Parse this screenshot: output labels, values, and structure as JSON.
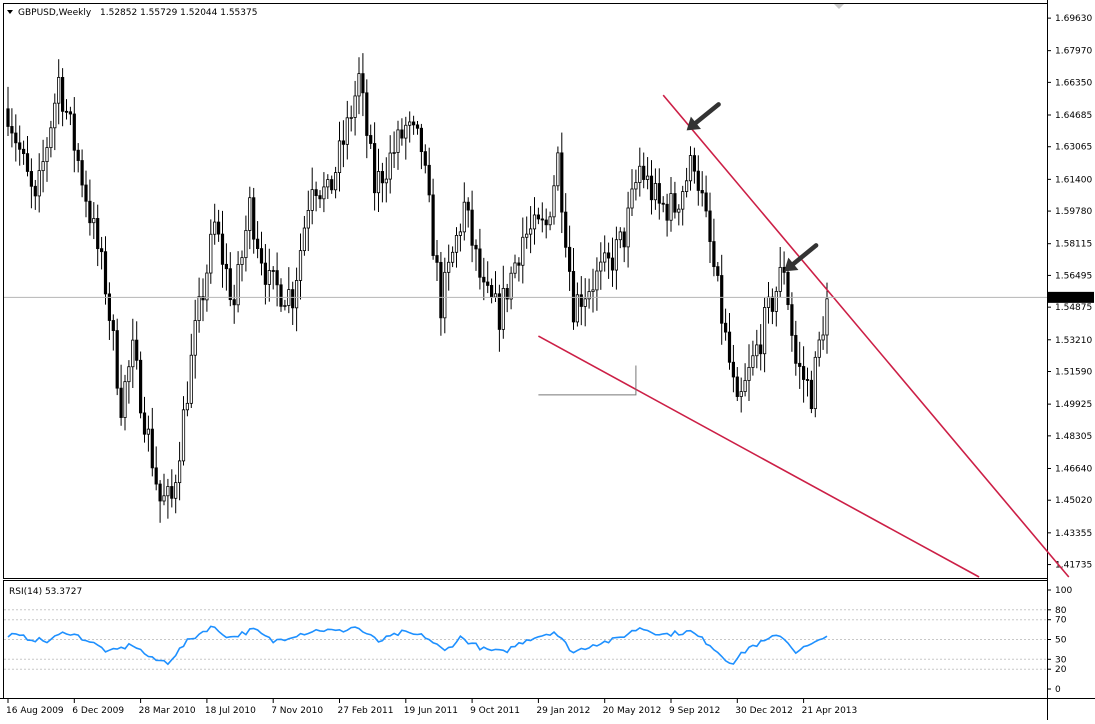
{
  "header": {
    "title": "GBPUSD,Weekly",
    "ohlc": "1.52852 1.55729 1.52044 1.55375"
  },
  "rsi_header": "RSI(14) 53.3727",
  "colors": {
    "background": "#ffffff",
    "candle": "#000000",
    "trendline": "#cc1f46",
    "rsi_line": "#1e90ff",
    "arrow": "#333333",
    "price_marker_bg": "#000000",
    "price_marker_text": "#ffffff"
  },
  "chart_data": [
    {
      "type": "candlestick",
      "title": "GBPUSD,Weekly",
      "ylim": [
        1.411,
        1.703
      ],
      "y_ticks": [
        "1.69630",
        "1.67970",
        "1.66350",
        "1.64685",
        "1.63065",
        "1.61400",
        "1.59780",
        "1.58115",
        "1.56495",
        "1.54875",
        "1.53210",
        "1.51590",
        "1.49925",
        "1.48305",
        "1.46640",
        "1.45020",
        "1.43355",
        "1.41735"
      ],
      "current_price": "1.55375",
      "x_tick_labels": [
        "16 Aug 2009",
        "6 Dec 2009",
        "28 Mar 2010",
        "18 Jul 2010",
        "7 Nov 2010",
        "27 Feb 2011",
        "19 Jun 2011",
        "9 Oct 2011",
        "29 Jan 2012",
        "20 May 2012",
        "9 Sep 2012",
        "30 Dec 2012",
        "21 Apr 2013"
      ],
      "anchors": [
        {
          "date": "2009-08-16",
          "close": 1.65
        },
        {
          "date": "2009-10-04",
          "close": 1.6
        },
        {
          "date": "2009-11-15",
          "close": 1.665
        },
        {
          "date": "2009-12-27",
          "close": 1.615
        },
        {
          "date": "2010-02-07",
          "close": 1.56
        },
        {
          "date": "2010-03-07",
          "close": 1.5
        },
        {
          "date": "2010-03-28",
          "close": 1.525
        },
        {
          "date": "2010-05-16",
          "close": 1.45
        },
        {
          "date": "2010-06-06",
          "close": 1.45
        },
        {
          "date": "2010-07-18",
          "close": 1.535
        },
        {
          "date": "2010-08-22",
          "close": 1.59
        },
        {
          "date": "2010-09-26",
          "close": 1.55
        },
        {
          "date": "2010-10-24",
          "close": 1.6
        },
        {
          "date": "2010-11-28",
          "close": 1.56
        },
        {
          "date": "2011-01-09",
          "close": 1.555
        },
        {
          "date": "2011-02-13",
          "close": 1.615
        },
        {
          "date": "2011-03-13",
          "close": 1.605
        },
        {
          "date": "2011-04-17",
          "close": 1.64
        },
        {
          "date": "2011-05-08",
          "close": 1.665
        },
        {
          "date": "2011-06-05",
          "close": 1.61
        },
        {
          "date": "2011-07-31",
          "close": 1.64
        },
        {
          "date": "2011-08-28",
          "close": 1.63
        },
        {
          "date": "2011-10-02",
          "close": 1.55
        },
        {
          "date": "2011-11-13",
          "close": 1.6
        },
        {
          "date": "2011-12-18",
          "close": 1.555
        },
        {
          "date": "2012-01-15",
          "close": 1.545
        },
        {
          "date": "2012-02-26",
          "close": 1.585
        },
        {
          "date": "2012-04-08",
          "close": 1.59
        },
        {
          "date": "2012-04-29",
          "close": 1.625
        },
        {
          "date": "2012-05-27",
          "close": 1.55
        },
        {
          "date": "2012-06-24",
          "close": 1.56
        },
        {
          "date": "2012-07-29",
          "close": 1.57
        },
        {
          "date": "2012-08-26",
          "close": 1.585
        },
        {
          "date": "2012-09-23",
          "close": 1.62
        },
        {
          "date": "2012-10-28",
          "close": 1.6
        },
        {
          "date": "2012-11-25",
          "close": 1.6
        },
        {
          "date": "2012-12-30",
          "close": 1.625
        },
        {
          "date": "2013-01-27",
          "close": 1.58
        },
        {
          "date": "2013-03-03",
          "close": 1.52
        },
        {
          "date": "2013-03-17",
          "close": 1.495
        },
        {
          "date": "2013-05-05",
          "close": 1.54
        },
        {
          "date": "2013-06-09",
          "close": 1.57
        },
        {
          "date": "2013-06-30",
          "close": 1.52
        },
        {
          "date": "2013-07-28",
          "close": 1.505
        },
        {
          "date": "2013-08-25",
          "close": 1.553
        }
      ],
      "trendlines": [
        {
          "name": "upper",
          "from": {
            "date": "2012-11-04",
            "price": 1.657
          },
          "to": {
            "date": "2014-11-02",
            "price": 1.411
          }
        },
        {
          "name": "lower",
          "from": {
            "date": "2012-03-25",
            "price": 1.534
          },
          "to": {
            "date": "2014-05-25",
            "price": 1.411
          }
        }
      ],
      "arrows": [
        {
          "date": "2012-12-16",
          "price": 1.639
        },
        {
          "date": "2013-06-09",
          "price": 1.567
        }
      ],
      "bracket": {
        "from_date": "2012-03-25",
        "to_date": "2012-09-16",
        "price_top": 1.519,
        "price_bottom": 1.504
      }
    },
    {
      "type": "line",
      "title": "RSI(14) 53.3727",
      "ylim": [
        0,
        100
      ],
      "y_ticks": [
        "100",
        "80",
        "70",
        "50",
        "30",
        "20",
        "0"
      ],
      "levels": [
        20,
        30,
        50,
        70,
        80
      ],
      "last_value": 53.3727,
      "anchors": [
        {
          "date": "2009-08-16",
          "value": 55
        },
        {
          "date": "2009-10-25",
          "value": 48
        },
        {
          "date": "2009-11-29",
          "value": 58
        },
        {
          "date": "2010-01-03",
          "value": 50
        },
        {
          "date": "2010-02-14",
          "value": 37
        },
        {
          "date": "2010-03-28",
          "value": 45
        },
        {
          "date": "2010-05-02",
          "value": 30
        },
        {
          "date": "2010-05-30",
          "value": 27
        },
        {
          "date": "2010-07-04",
          "value": 48
        },
        {
          "date": "2010-08-15",
          "value": 63
        },
        {
          "date": "2010-09-19",
          "value": 52
        },
        {
          "date": "2010-10-31",
          "value": 60
        },
        {
          "date": "2010-12-05",
          "value": 48
        },
        {
          "date": "2011-01-16",
          "value": 55
        },
        {
          "date": "2011-02-27",
          "value": 60
        },
        {
          "date": "2011-04-03",
          "value": 58
        },
        {
          "date": "2011-05-01",
          "value": 63
        },
        {
          "date": "2011-06-12",
          "value": 48
        },
        {
          "date": "2011-07-24",
          "value": 57
        },
        {
          "date": "2011-09-04",
          "value": 53
        },
        {
          "date": "2011-10-09",
          "value": 38
        },
        {
          "date": "2011-11-06",
          "value": 52
        },
        {
          "date": "2011-12-18",
          "value": 40
        },
        {
          "date": "2012-01-22",
          "value": 37
        },
        {
          "date": "2012-03-04",
          "value": 50
        },
        {
          "date": "2012-04-22",
          "value": 58
        },
        {
          "date": "2012-05-27",
          "value": 37
        },
        {
          "date": "2012-07-01",
          "value": 45
        },
        {
          "date": "2012-08-12",
          "value": 50
        },
        {
          "date": "2012-09-23",
          "value": 62
        },
        {
          "date": "2012-11-04",
          "value": 55
        },
        {
          "date": "2012-12-23",
          "value": 58
        },
        {
          "date": "2013-01-27",
          "value": 45
        },
        {
          "date": "2013-02-24",
          "value": 30
        },
        {
          "date": "2013-03-10",
          "value": 27
        },
        {
          "date": "2013-04-07",
          "value": 42
        },
        {
          "date": "2013-05-05",
          "value": 48
        },
        {
          "date": "2013-06-02",
          "value": 55
        },
        {
          "date": "2013-06-30",
          "value": 38
        },
        {
          "date": "2013-08-11",
          "value": 48
        },
        {
          "date": "2013-08-25",
          "value": 53.37
        }
      ]
    }
  ]
}
